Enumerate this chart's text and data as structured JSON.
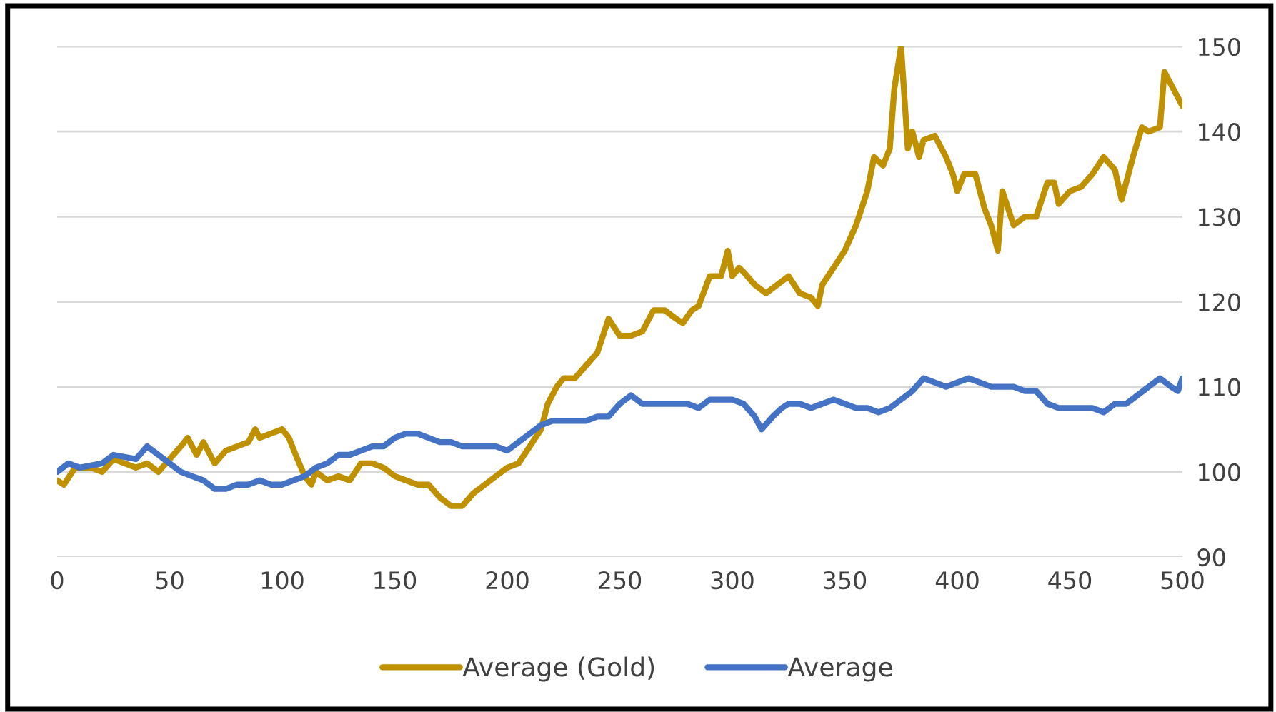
{
  "chart_data": {
    "type": "line",
    "xlim": [
      0,
      500
    ],
    "xticks": [
      0,
      50,
      100,
      150,
      200,
      250,
      300,
      350,
      400,
      450,
      500
    ],
    "ylim": [
      90,
      150
    ],
    "yticks": [
      90,
      100,
      110,
      120,
      130,
      140,
      150
    ],
    "grid": "y",
    "legend": "bottom",
    "marker": "none",
    "line_style": "solid",
    "series": [
      {
        "name": "Average (Gold)",
        "color": "#bf9000",
        "x": [
          0,
          3,
          8,
          15,
          20,
          25,
          30,
          35,
          40,
          45,
          50,
          55,
          58,
          62,
          65,
          70,
          75,
          80,
          85,
          88,
          90,
          95,
          100,
          103,
          106,
          110,
          113,
          115,
          120,
          125,
          130,
          135,
          140,
          145,
          150,
          155,
          160,
          165,
          170,
          175,
          180,
          185,
          190,
          195,
          200,
          205,
          210,
          215,
          218,
          222,
          225,
          230,
          235,
          240,
          245,
          250,
          255,
          260,
          265,
          270,
          275,
          278,
          282,
          285,
          290,
          295,
          298,
          300,
          303,
          305,
          310,
          315,
          320,
          325,
          330,
          335,
          338,
          340,
          345,
          350,
          355,
          360,
          363,
          367,
          370,
          372,
          375,
          378,
          380,
          383,
          385,
          390,
          395,
          398,
          400,
          403,
          408,
          412,
          415,
          418,
          420,
          425,
          430,
          435,
          440,
          443,
          445,
          450,
          455,
          460,
          465,
          470,
          473,
          478,
          482,
          485,
          490,
          492,
          496,
          500
        ],
        "values": [
          99,
          98.5,
          100.5,
          100.5,
          100,
          101.5,
          101,
          100.5,
          101,
          100,
          101.5,
          103,
          104,
          102,
          103.5,
          101,
          102.5,
          103,
          103.5,
          105,
          104,
          104.5,
          105,
          104,
          102,
          99.5,
          98.5,
          100,
          99,
          99.5,
          99,
          101,
          101,
          100.5,
          99.5,
          99,
          98.5,
          98.5,
          97,
          96,
          96,
          97.5,
          98.5,
          99.5,
          100.5,
          101,
          103,
          105,
          108,
          110,
          111,
          111,
          112.5,
          114,
          118,
          116,
          116,
          116.5,
          119,
          119,
          118,
          117.5,
          119,
          119.5,
          123,
          123,
          126,
          123,
          124,
          123.5,
          122,
          121,
          122,
          123,
          121,
          120.5,
          119.5,
          122,
          124,
          126,
          129,
          133,
          137,
          136,
          138,
          145,
          150,
          138,
          140,
          137,
          139,
          139.5,
          137,
          135,
          133,
          135,
          135,
          131,
          129,
          126,
          133,
          129,
          130,
          130,
          134,
          134,
          131.5,
          133,
          133.5,
          135,
          137,
          135.5,
          132,
          137,
          140.5,
          140,
          140.5,
          147,
          145,
          143
        ]
      },
      {
        "name": "Average",
        "color": "#4472c4",
        "x": [
          0,
          5,
          10,
          20,
          25,
          35,
          40,
          45,
          50,
          55,
          60,
          65,
          70,
          75,
          80,
          85,
          90,
          95,
          100,
          105,
          110,
          115,
          120,
          125,
          130,
          135,
          140,
          145,
          150,
          155,
          160,
          165,
          170,
          175,
          180,
          185,
          190,
          195,
          200,
          205,
          210,
          215,
          220,
          225,
          230,
          235,
          240,
          245,
          250,
          255,
          260,
          265,
          270,
          275,
          280,
          285,
          290,
          295,
          300,
          305,
          310,
          313,
          318,
          322,
          325,
          330,
          335,
          340,
          345,
          350,
          355,
          360,
          365,
          370,
          375,
          380,
          385,
          390,
          395,
          400,
          405,
          410,
          415,
          420,
          425,
          430,
          435,
          440,
          445,
          450,
          455,
          460,
          465,
          470,
          475,
          480,
          485,
          490,
          495,
          498,
          500
        ],
        "values": [
          100,
          101,
          100.5,
          101,
          102,
          101.5,
          103,
          102,
          101,
          100,
          99.5,
          99,
          98,
          98,
          98.5,
          98.5,
          99,
          98.5,
          98.5,
          99,
          99.5,
          100.5,
          101,
          102,
          102,
          102.5,
          103,
          103,
          104,
          104.5,
          104.5,
          104,
          103.5,
          103.5,
          103,
          103,
          103,
          103,
          102.5,
          103.5,
          104.5,
          105.5,
          106,
          106,
          106,
          106,
          106.5,
          106.5,
          108,
          109,
          108,
          108,
          108,
          108,
          108,
          107.5,
          108.5,
          108.5,
          108.5,
          108,
          106.5,
          105,
          106.5,
          107.5,
          108,
          108,
          107.5,
          108,
          108.5,
          108,
          107.5,
          107.5,
          107,
          107.5,
          108.5,
          109.5,
          111,
          110.5,
          110,
          110.5,
          111,
          110.5,
          110,
          110,
          110,
          109.5,
          109.5,
          108,
          107.5,
          107.5,
          107.5,
          107.5,
          107,
          108,
          108,
          109,
          110,
          111,
          110,
          109.5,
          111
        ]
      }
    ]
  }
}
